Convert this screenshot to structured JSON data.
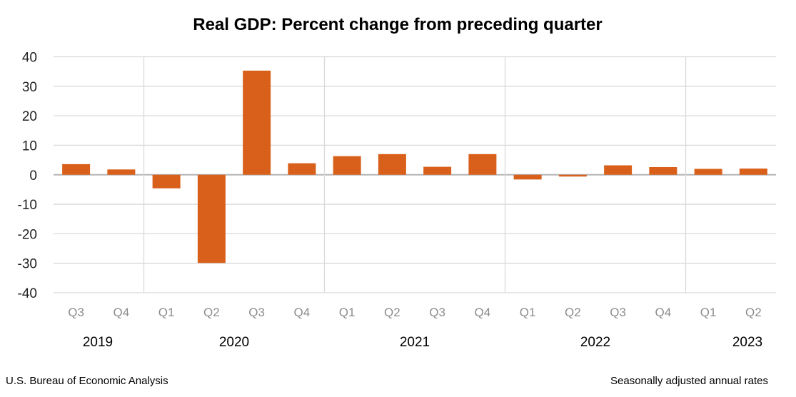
{
  "chart_data": {
    "type": "bar",
    "title": "Real GDP: Percent change from preceding quarter",
    "xlabel": "",
    "ylabel": "",
    "ylim": [
      -40,
      40
    ],
    "yticks": [
      40,
      30,
      20,
      10,
      0,
      -10,
      -20,
      -30,
      -40
    ],
    "grid": true,
    "categories": [
      "Q3",
      "Q4",
      "Q1",
      "Q2",
      "Q3",
      "Q4",
      "Q1",
      "Q2",
      "Q3",
      "Q4",
      "Q1",
      "Q2",
      "Q3",
      "Q4",
      "Q1",
      "Q2"
    ],
    "years": [
      {
        "label": "2019",
        "start": 0,
        "count": 2
      },
      {
        "label": "2020",
        "start": 2,
        "count": 4
      },
      {
        "label": "2021",
        "start": 6,
        "count": 4
      },
      {
        "label": "2022",
        "start": 10,
        "count": 4
      },
      {
        "label": "2023",
        "start": 14,
        "count": 2
      }
    ],
    "values": [
      3.6,
      1.8,
      -4.6,
      -29.9,
      35.3,
      3.9,
      6.3,
      7.0,
      2.7,
      7.0,
      -1.6,
      -0.6,
      3.2,
      2.6,
      2.0,
      2.1
    ],
    "bar_color": "#D9601A",
    "source": "U.S. Bureau of Economic Analysis",
    "note": "Seasonally adjusted annual rates"
  }
}
